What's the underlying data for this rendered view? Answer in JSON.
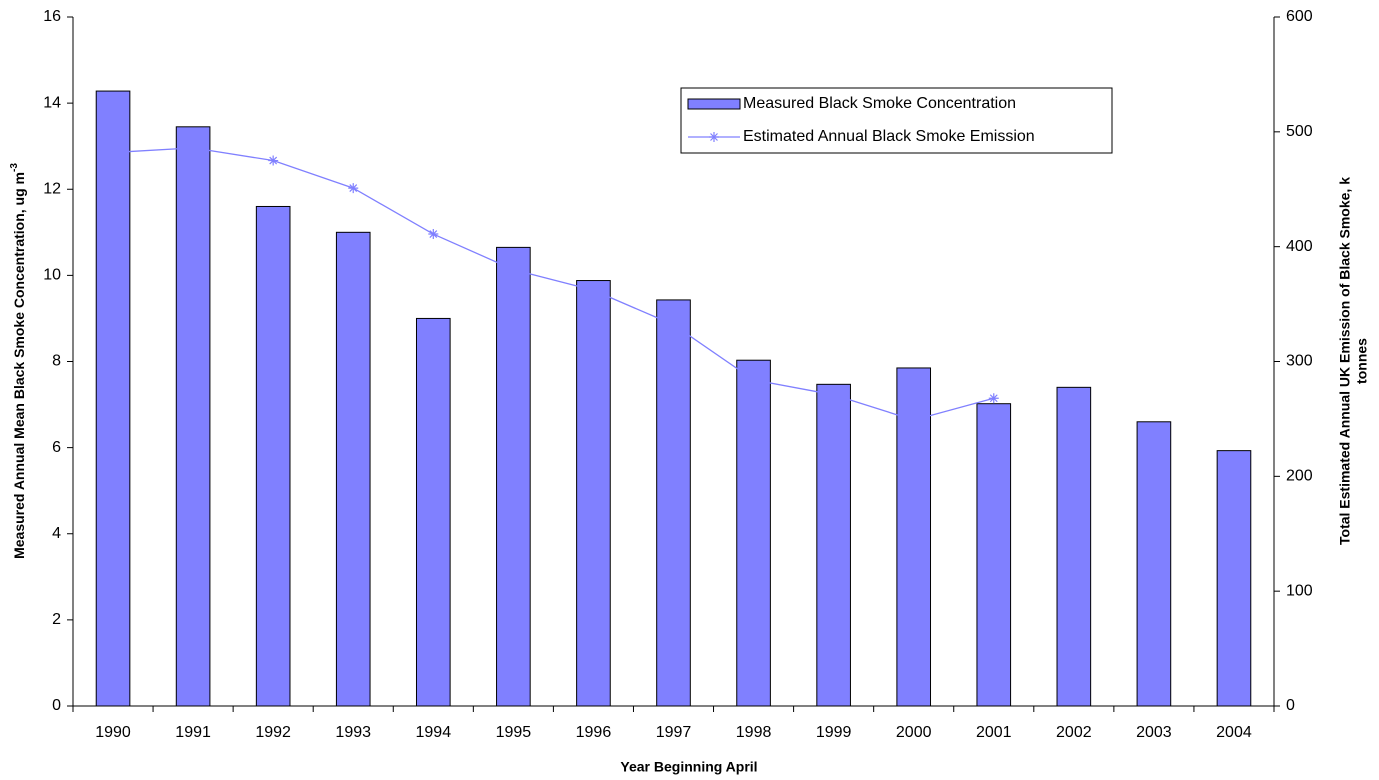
{
  "chart_data": {
    "type": "bar-line",
    "xlabel": "Year Beginning April",
    "ylabel": "Measured Annual Mean Black Smoke Concentration, ug m",
    "ylabel_superscript": "-3",
    "y2label": [
      "Total Estimated Annual UK Emission of Black Smoke, k",
      "tonnes"
    ],
    "categories": [
      "1990",
      "1991",
      "1992",
      "1993",
      "1994",
      "1995",
      "1996",
      "1997",
      "1998",
      "1999",
      "2000",
      "2001",
      "2002",
      "2003",
      "2004"
    ],
    "series": [
      {
        "name": "Measured Black Smoke Concentration",
        "type": "bar",
        "color": "#8080ff",
        "values": [
          14.28,
          13.45,
          11.6,
          11.0,
          9.0,
          10.65,
          9.88,
          9.43,
          8.03,
          7.47,
          7.85,
          7.02,
          7.4,
          6.6,
          5.93
        ]
      },
      {
        "name": "Estimated Annual Black Smoke Emission",
        "type": "line",
        "axis": "y2",
        "color": "#8080ff",
        "values": [
          482,
          486,
          475,
          451,
          411,
          380,
          362,
          332,
          284,
          271,
          249,
          268,
          null,
          null,
          null
        ]
      }
    ],
    "ylim": [
      0,
      16
    ],
    "yticks": [
      0,
      2,
      4,
      6,
      8,
      10,
      12,
      14,
      16
    ],
    "y2lim": [
      0,
      600
    ],
    "y2ticks": [
      0,
      100,
      200,
      300,
      400,
      500,
      600
    ],
    "grid": false,
    "legend": "upper right"
  }
}
